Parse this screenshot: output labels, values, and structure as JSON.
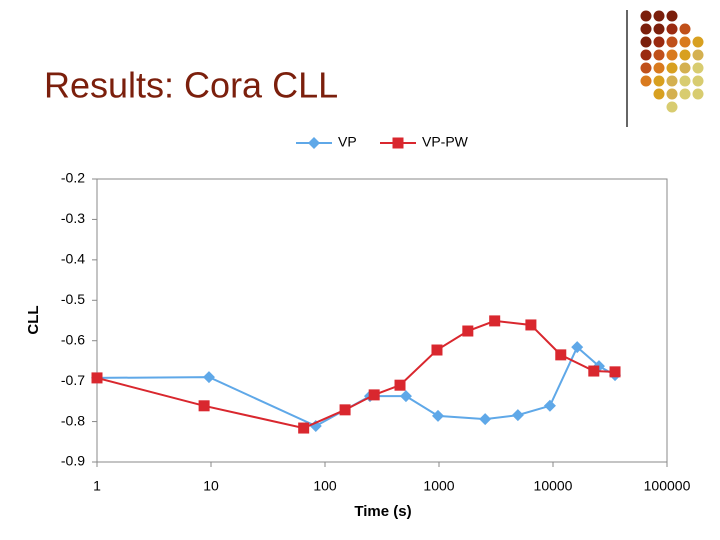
{
  "slide_title": "Results: Cora CLL",
  "chart_data": {
    "type": "line",
    "xlabel": "Time (s)",
    "ylabel": "CLL",
    "xscale": "log",
    "xlim": [
      1,
      100000
    ],
    "xticks": [
      1,
      10,
      100,
      1000,
      10000,
      100000
    ],
    "ylim": [
      -0.9,
      -0.2
    ],
    "yticks": [
      -0.2,
      -0.3,
      -0.4,
      -0.5,
      -0.6,
      -0.7,
      -0.8,
      -0.9
    ],
    "grid": false,
    "legend": "top",
    "series": [
      {
        "name": "VP",
        "color": "#5fa8e8",
        "marker": "diamond",
        "x": [
          1,
          9.6,
          83,
          248,
          513,
          980,
          2540,
          4920,
          9400,
          16300,
          25300,
          35000
        ],
        "values": [
          -0.692,
          -0.69,
          -0.811,
          -0.737,
          -0.737,
          -0.786,
          -0.794,
          -0.784,
          -0.761,
          -0.616,
          -0.663,
          -0.685
        ]
      },
      {
        "name": "VP-PW",
        "color": "#d9272e",
        "marker": "square",
        "x": [
          1,
          8.7,
          65,
          150,
          270,
          455,
          960,
          1790,
          3080,
          6400,
          11700,
          22800,
          35000
        ],
        "values": [
          -0.692,
          -0.761,
          -0.816,
          -0.771,
          -0.734,
          -0.71,
          -0.623,
          -0.576,
          -0.551,
          -0.561,
          -0.635,
          -0.675,
          -0.677
        ]
      }
    ]
  }
}
